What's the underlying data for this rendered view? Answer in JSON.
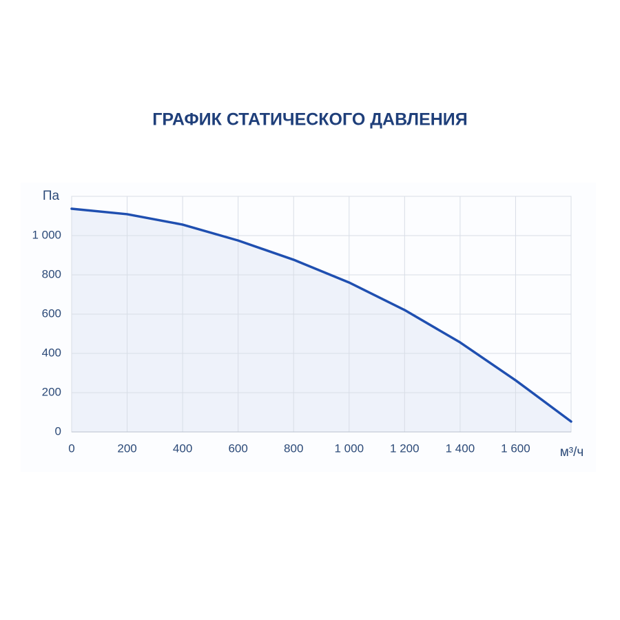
{
  "chart_data": {
    "type": "area-line",
    "title": "ГРАФИК СТАТИЧЕСКОГО ДАВЛЕНИЯ",
    "x_label": "м³/ч",
    "y_label": "Па",
    "x": [
      0,
      200,
      400,
      600,
      800,
      1000,
      1200,
      1400,
      1600,
      1800
    ],
    "series": [
      {
        "color": "#1f4fb0",
        "values": [
          1137,
          1109,
          1056,
          975,
          877,
          761,
          621,
          456,
          263,
          53
        ]
      }
    ],
    "xlim": [
      0,
      1800
    ],
    "xticks": [
      0,
      200,
      400,
      600,
      800,
      {
        "value": 1000,
        "label": "1 000"
      },
      {
        "value": 1200,
        "label": "1 200"
      },
      {
        "value": 1400,
        "label": "1 400"
      },
      {
        "value": 1600,
        "label": "1 600"
      }
    ],
    "ylim": [
      0,
      1200
    ],
    "yticks": [
      0,
      200,
      400,
      600,
      800,
      {
        "value": 1000,
        "label": "1 000"
      }
    ],
    "grid": true
  }
}
